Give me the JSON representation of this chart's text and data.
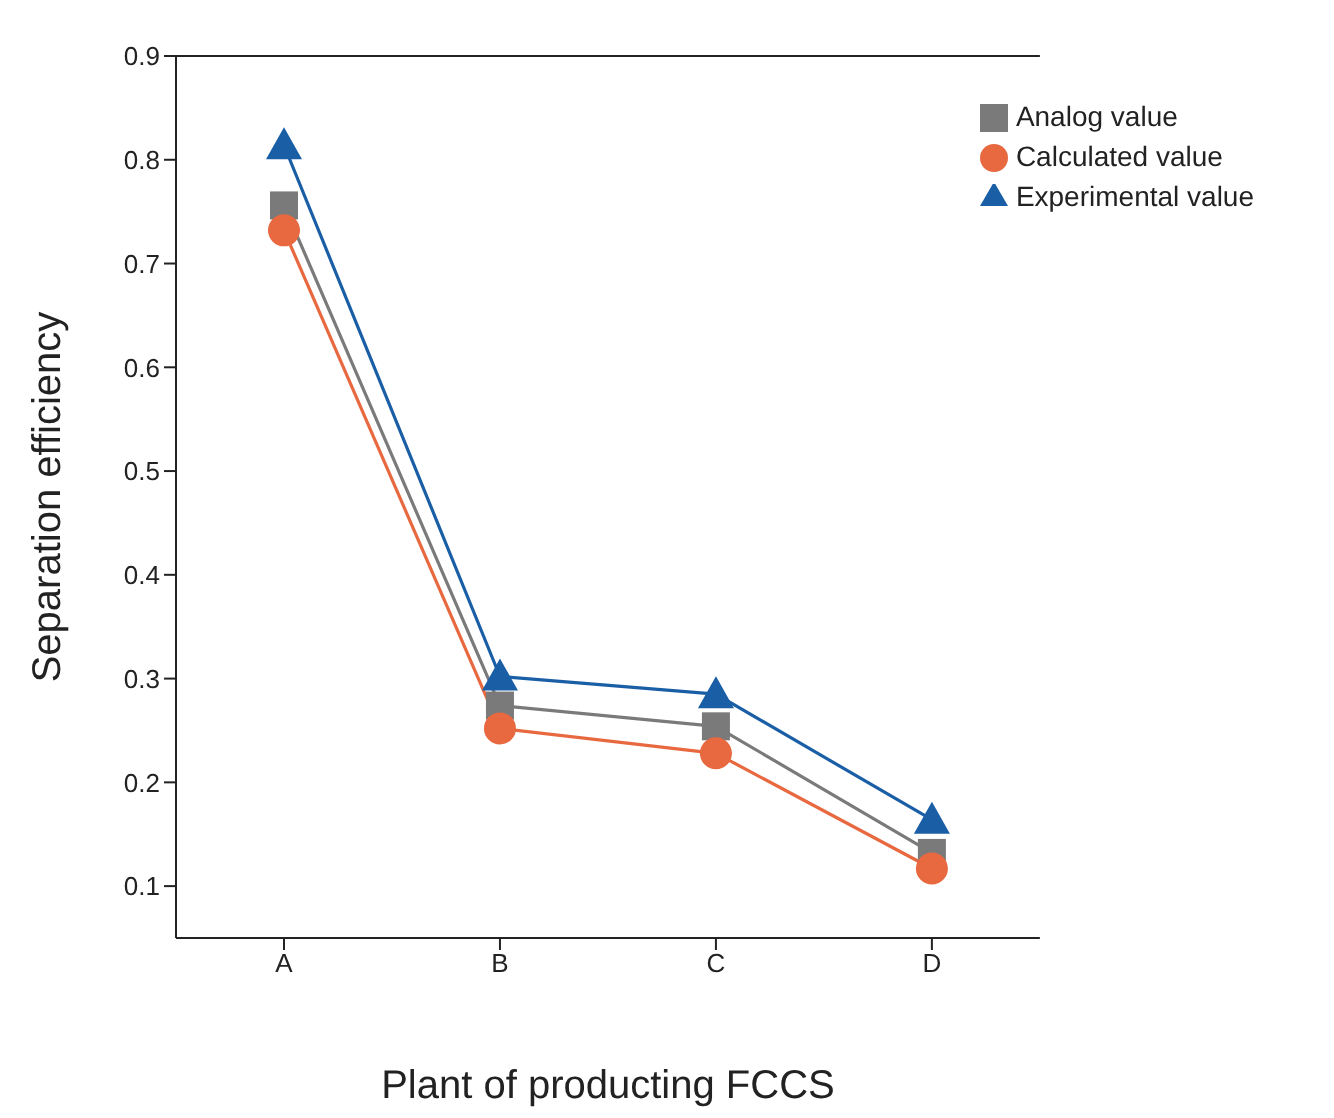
{
  "chart_data": {
    "type": "line",
    "xlabel": "Plant of producting FCCS",
    "ylabel": "Separation efficiency",
    "categories": [
      "A",
      "B",
      "C",
      "D"
    ],
    "series": [
      {
        "name": "Analog value",
        "color": "#7a7a7a",
        "marker": "square",
        "values": [
          0.756,
          0.274,
          0.254,
          0.132
        ]
      },
      {
        "name": "Calculated value",
        "color": "#e8683f",
        "marker": "circle",
        "values": [
          0.732,
          0.252,
          0.228,
          0.117
        ]
      },
      {
        "name": "Experimental value",
        "color": "#1a5ea6",
        "marker": "triangle",
        "values": [
          0.814,
          0.302,
          0.285,
          0.164
        ]
      }
    ],
    "ylim": [
      0.05,
      0.9
    ],
    "yticks": [
      0.1,
      0.2,
      0.3,
      0.4,
      0.5,
      0.6,
      0.7,
      0.8,
      0.9
    ],
    "grid": false,
    "legend": "top right"
  }
}
